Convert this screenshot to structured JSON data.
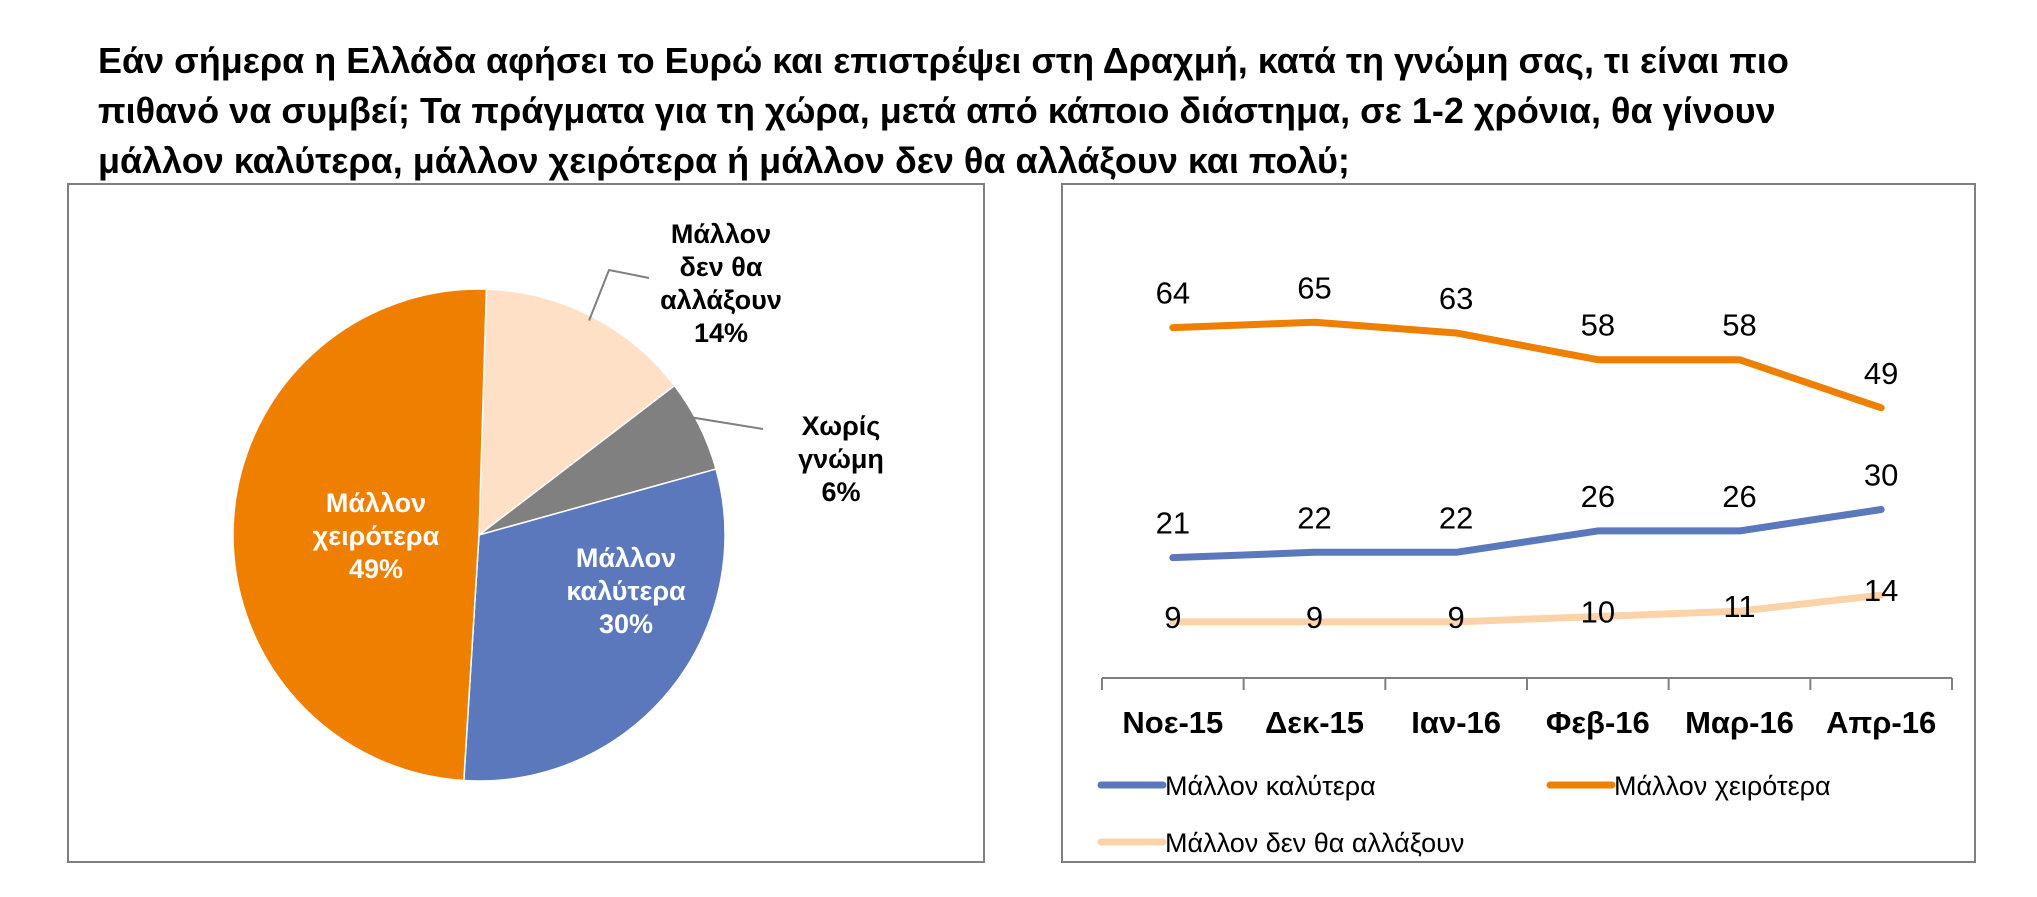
{
  "title_lines": [
    "Εάν σήμερα η Ελλάδα αφήσει το Ευρώ και επιστρέψει στη Δραχμή, κατά τη γνώμη σας, τι είναι πιο",
    "πιθανό να συμβεί; Τα πράγματα για τη χώρα, μετά από κάποιο διάστημα, σε 1-2 χρόνια, θα γίνουν",
    "μάλλον καλύτερα, μάλλον χειρότερα ή μάλλον δεν θα αλλάξουν και πολύ;"
  ],
  "chart_data": [
    {
      "type": "pie",
      "slices": [
        {
          "label_lines": [
            "Μάλλον",
            "δεν θα",
            "αλλάξουν"
          ],
          "value": 14,
          "value_text": "14%",
          "color": "#fde0c5",
          "label_color": "#000000"
        },
        {
          "label_lines": [
            "Χωρίς",
            "γνώμη"
          ],
          "value": 6,
          "value_text": "6%",
          "color": "#808080",
          "label_color": "#000000"
        },
        {
          "label_lines": [
            "Μάλλον",
            "καλύτερα"
          ],
          "value": 30,
          "value_text": "30%",
          "color": "#5b78bd",
          "label_color": "#ffffff"
        },
        {
          "label_lines": [
            "Μάλλον",
            "χειρότερα"
          ],
          "value": 49,
          "value_text": "49%",
          "color": "#ee7f00",
          "label_color": "#ffffff"
        }
      ]
    },
    {
      "type": "line",
      "categories": [
        "Νοε-15",
        "Δεκ-15",
        "Ιαν-16",
        "Φεβ-16",
        "Μαρ-16",
        "Απρ-16"
      ],
      "series": [
        {
          "name": "Μάλλον καλύτερα",
          "values": [
            21,
            22,
            22,
            26,
            26,
            30
          ],
          "color": "#5b78bd"
        },
        {
          "name": "Μάλλον χειρότερα",
          "values": [
            64,
            65,
            63,
            58,
            58,
            49
          ],
          "color": "#ee7f00"
        },
        {
          "name": "Μάλλον δεν θα αλλάξουν",
          "values": [
            9,
            9,
            9,
            10,
            11,
            14
          ],
          "color": "#fcd3a8"
        }
      ],
      "legend_position": "bottom",
      "grid": false
    }
  ]
}
